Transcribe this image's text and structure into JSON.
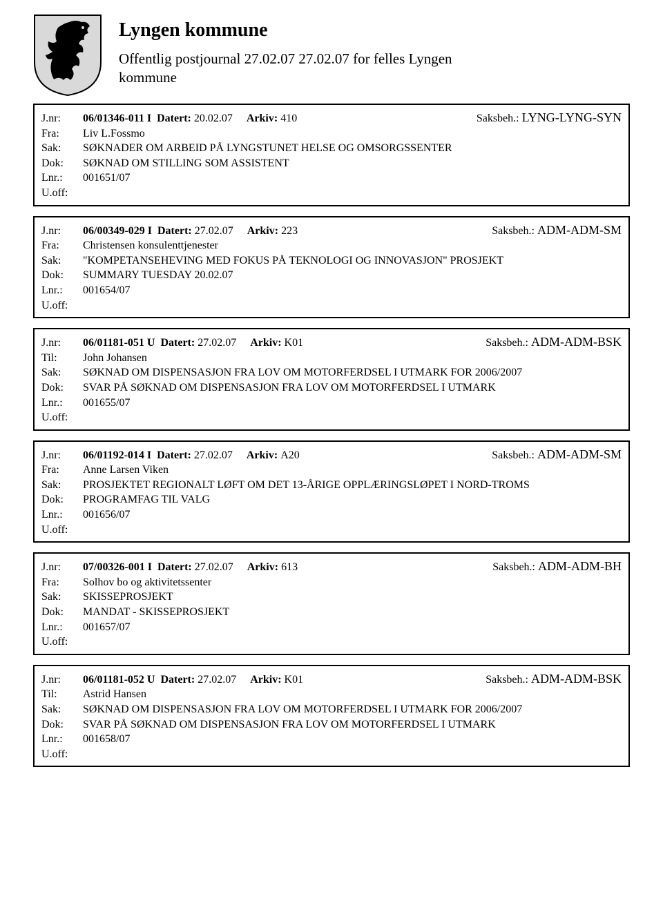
{
  "header": {
    "title": "Lyngen kommune",
    "subtitle": "Offentlig postjournal 27.02.07 27.02.07 for felles Lyngen kommune",
    "crest_colors": {
      "shield_fill": "#d9d9d9",
      "shield_stroke": "#000000",
      "horse_fill": "#000000"
    }
  },
  "labels": {
    "jnr": "J.nr:",
    "datert": "Datert:",
    "arkiv": "Arkiv:",
    "saksbeh": "Saksbeh.:",
    "fra": "Fra:",
    "til": "Til:",
    "sak": "Sak:",
    "dok": "Dok:",
    "lnr": "Lnr.:",
    "uoff": "U.off:"
  },
  "entries": [
    {
      "jnr": "06/01346-011 I",
      "datert": "20.02.07",
      "arkiv": "410",
      "saksbeh": "LYNG-LYNG-SYN",
      "party_label": "Fra:",
      "party": "Liv L.Fossmo",
      "sak": "SØKNADER OM ARBEID PÅ LYNGSTUNET HELSE OG OMSORGSSENTER",
      "dok": "SØKNAD OM STILLING SOM ASSISTENT",
      "lnr": "001651/07",
      "uoff": ""
    },
    {
      "jnr": "06/00349-029 I",
      "datert": "27.02.07",
      "arkiv": "223",
      "saksbeh": "ADM-ADM-SM",
      "party_label": "Fra:",
      "party": "Christensen konsulenttjenester",
      "sak": "\"KOMPETANSEHEVING MED FOKUS PÅ TEKNOLOGI OG INNOVASJON\" PROSJEKT",
      "dok": "SUMMARY TUESDAY 20.02.07",
      "lnr": "001654/07",
      "uoff": ""
    },
    {
      "jnr": "06/01181-051 U",
      "datert": "27.02.07",
      "arkiv": "K01",
      "saksbeh": "ADM-ADM-BSK",
      "party_label": "Til:",
      "party": "John Johansen",
      "sak": "SØKNAD OM DISPENSASJON FRA LOV OM MOTORFERDSEL I UTMARK FOR 2006/2007",
      "dok": "SVAR PÅ SØKNAD OM DISPENSASJON FRA LOV OM MOTORFERDSEL I UTMARK",
      "lnr": "001655/07",
      "uoff": ""
    },
    {
      "jnr": "06/01192-014 I",
      "datert": "27.02.07",
      "arkiv": "A20",
      "saksbeh": "ADM-ADM-SM",
      "party_label": "Fra:",
      "party": "Anne Larsen Viken",
      "sak": "PROSJEKTET REGIONALT LØFT OM DET 13-ÅRIGE OPPLÆRINGSLØPET I NORD-TROMS",
      "dok": "PROGRAMFAG TIL VALG",
      "lnr": "001656/07",
      "uoff": ""
    },
    {
      "jnr": "07/00326-001 I",
      "datert": "27.02.07",
      "arkiv": "613",
      "saksbeh": "ADM-ADM-BH",
      "party_label": "Fra:",
      "party": "Solhov bo og aktivitetssenter",
      "sak": "SKISSEPROSJEKT",
      "dok": "MANDAT - SKISSEPROSJEKT",
      "lnr": "001657/07",
      "uoff": ""
    },
    {
      "jnr": "06/01181-052 U",
      "datert": "27.02.07",
      "arkiv": "K01",
      "saksbeh": "ADM-ADM-BSK",
      "party_label": "Til:",
      "party": "Astrid Hansen",
      "sak": "SØKNAD OM DISPENSASJON FRA LOV OM MOTORFERDSEL I UTMARK FOR 2006/2007",
      "dok": "SVAR PÅ SØKNAD OM DISPENSASJON FRA LOV OM MOTORFERDSEL I UTMARK",
      "lnr": "001658/07",
      "uoff": ""
    }
  ]
}
